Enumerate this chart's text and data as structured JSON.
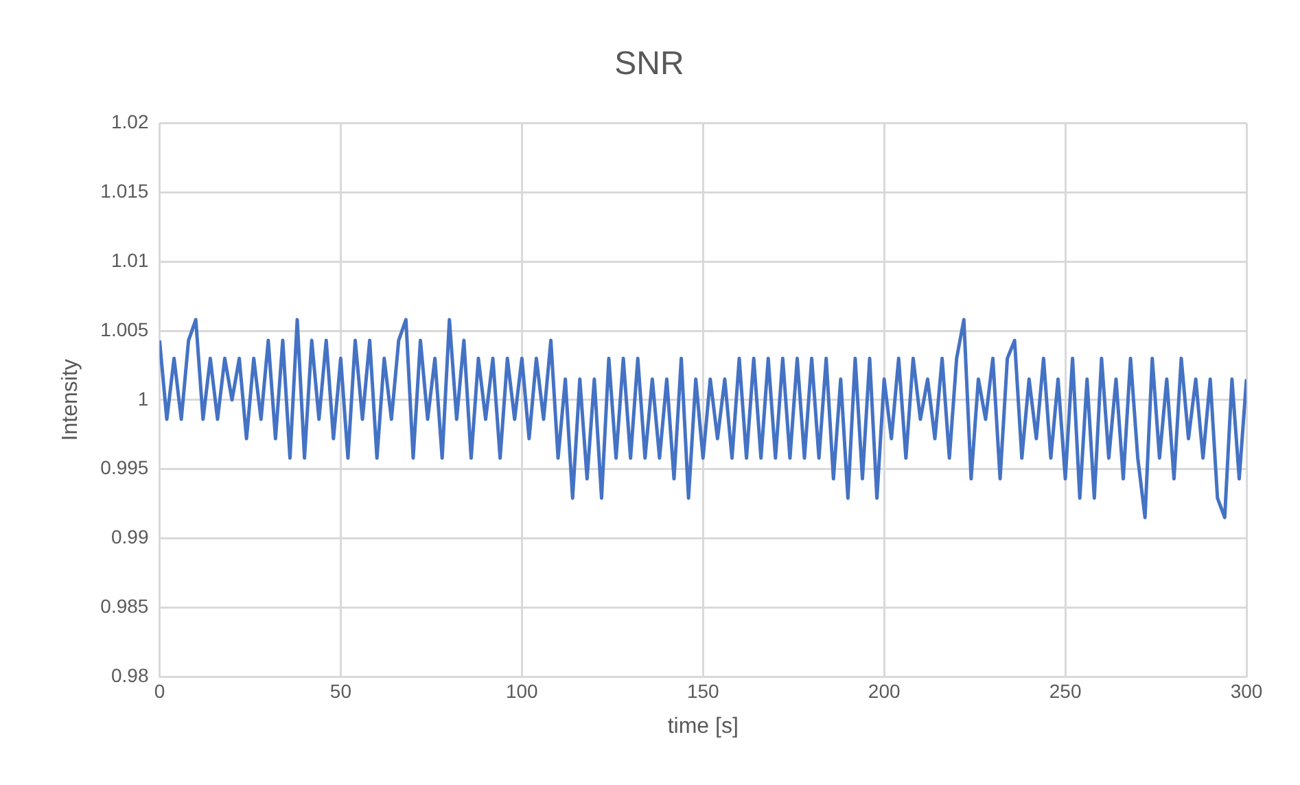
{
  "chart_data": {
    "type": "line",
    "title": "SNR",
    "xlabel": "time [s]",
    "ylabel": "Intensity",
    "x": [
      0,
      2,
      4,
      6,
      8,
      10,
      12,
      14,
      16,
      18,
      20,
      22,
      24,
      26,
      28,
      30,
      32,
      34,
      36,
      38,
      40,
      42,
      44,
      46,
      48,
      50,
      52,
      54,
      56,
      58,
      60,
      62,
      64,
      66,
      68,
      70,
      72,
      74,
      76,
      78,
      80,
      82,
      84,
      86,
      88,
      90,
      92,
      94,
      96,
      98,
      100,
      102,
      104,
      106,
      108,
      110,
      112,
      114,
      116,
      118,
      120,
      122,
      124,
      126,
      128,
      130,
      132,
      134,
      136,
      138,
      140,
      142,
      144,
      146,
      148,
      150,
      152,
      154,
      156,
      158,
      160,
      162,
      164,
      166,
      168,
      170,
      172,
      174,
      176,
      178,
      180,
      182,
      184,
      186,
      188,
      190,
      192,
      194,
      196,
      198,
      200,
      202,
      204,
      206,
      208,
      210,
      212,
      214,
      216,
      218,
      220,
      222,
      224,
      226,
      228,
      230,
      232,
      234,
      236,
      238,
      240,
      242,
      244,
      246,
      248,
      250,
      252,
      254,
      256,
      258,
      260,
      262,
      264,
      266,
      268,
      270,
      272,
      274,
      276,
      278,
      280,
      282,
      284,
      286,
      288,
      290,
      292,
      294,
      296,
      298,
      300
    ],
    "series": [
      {
        "color": "#4472c4",
        "values": [
          1.0043,
          0.9986,
          1.003,
          0.9986,
          1.0043,
          1.0058,
          0.9986,
          1.003,
          0.9986,
          1.003,
          1.0,
          1.003,
          0.9972,
          1.003,
          0.9986,
          1.0043,
          0.9972,
          1.0043,
          0.9958,
          1.0058,
          0.9958,
          1.0043,
          0.9986,
          1.0043,
          0.9972,
          1.003,
          0.9958,
          1.0043,
          0.9986,
          1.0043,
          0.9958,
          1.003,
          0.9986,
          1.0043,
          1.0058,
          0.9958,
          1.0043,
          0.9986,
          1.003,
          0.9958,
          1.0058,
          0.9986,
          1.0043,
          0.9958,
          1.003,
          0.9986,
          1.003,
          0.9958,
          1.003,
          0.9986,
          1.003,
          0.9972,
          1.003,
          0.9986,
          1.0043,
          0.9958,
          1.0015,
          0.9929,
          1.0015,
          0.9943,
          1.0015,
          0.9929,
          1.003,
          0.9958,
          1.003,
          0.9958,
          1.003,
          0.9958,
          1.0015,
          0.9958,
          1.0015,
          0.9943,
          1.003,
          0.9929,
          1.0015,
          0.9958,
          1.0015,
          0.9972,
          1.0015,
          0.9958,
          1.003,
          0.9958,
          1.003,
          0.9958,
          1.003,
          0.9958,
          1.003,
          0.9958,
          1.003,
          0.9958,
          1.003,
          0.9958,
          1.003,
          0.9943,
          1.0015,
          0.9929,
          1.003,
          0.9943,
          1.003,
          0.9929,
          1.0015,
          0.9972,
          1.003,
          0.9958,
          1.003,
          0.9986,
          1.0015,
          0.9972,
          1.003,
          0.9958,
          1.003,
          1.0058,
          0.9943,
          1.0015,
          0.9986,
          1.003,
          0.9943,
          1.003,
          1.0043,
          0.9958,
          1.0015,
          0.9972,
          1.003,
          0.9958,
          1.0015,
          0.9943,
          1.003,
          0.9929,
          1.0015,
          0.9929,
          1.003,
          0.9958,
          1.0015,
          0.9943,
          1.003,
          0.9958,
          0.9915,
          1.003,
          0.9958,
          1.0015,
          0.9943,
          1.003,
          0.9972,
          1.0015,
          0.9958,
          1.0015,
          0.9929,
          0.9915,
          1.0015,
          0.9943,
          1.0015
        ]
      }
    ],
    "xlim": [
      0,
      300
    ],
    "xticks": [
      0,
      50,
      100,
      150,
      200,
      250,
      300
    ],
    "ylim": [
      0.98,
      1.02
    ],
    "yticks": [
      0.98,
      0.985,
      0.99,
      0.995,
      1,
      1.005,
      1.01,
      1.015,
      1.02
    ],
    "grid": true,
    "legend": false,
    "marker": "none",
    "line_style": "solid"
  }
}
